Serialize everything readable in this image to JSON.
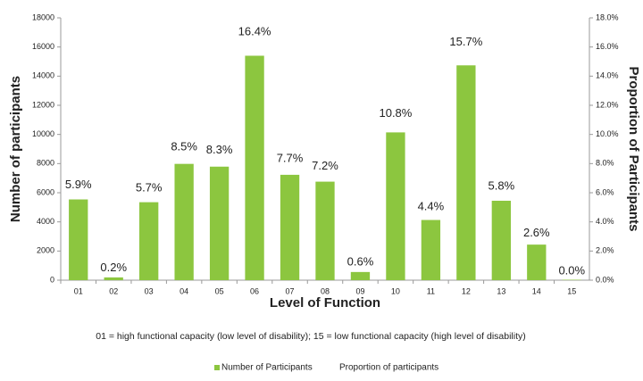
{
  "chart_data": {
    "type": "bar",
    "xlabel": "Level of Function",
    "ylabel": "Number of participants",
    "y2label": "Proportion of Participants",
    "note": "01 = high functional capacity (low level of disability); 15 = low functional capacity (high level of disability)",
    "categories": [
      "01",
      "02",
      "03",
      "04",
      "05",
      "06",
      "07",
      "08",
      "09",
      "10",
      "11",
      "12",
      "13",
      "14",
      "15"
    ],
    "series": [
      {
        "name": "Number of Participants",
        "color": "#8cc63f",
        "values": [
          5540,
          190,
          5350,
          7980,
          7790,
          15400,
          7230,
          6760,
          560,
          10140,
          4130,
          14740,
          5450,
          2440,
          30
        ]
      },
      {
        "name": "Proportion of participants",
        "color": "none",
        "axis": "y2",
        "values": [
          5.9,
          0.2,
          5.7,
          8.5,
          8.3,
          16.4,
          7.7,
          7.2,
          0.6,
          10.8,
          4.4,
          15.7,
          5.8,
          2.6,
          0.0
        ],
        "value_labels": [
          "5.9%",
          "0.2%",
          "5.7%",
          "8.5%",
          "8.3%",
          "16.4%",
          "7.7%",
          "7.2%",
          "0.6%",
          "10.8%",
          "4.4%",
          "15.7%",
          "5.8%",
          "2.6%",
          "0.0%"
        ]
      }
    ],
    "ylim": [
      0,
      18000
    ],
    "yticks": [
      0,
      2000,
      4000,
      6000,
      8000,
      10000,
      12000,
      14000,
      16000,
      18000
    ],
    "y2lim": [
      0,
      18
    ],
    "y2ticks": [
      {
        "value": 0,
        "label": "0.0%"
      },
      {
        "value": 2,
        "label": "2.0%"
      },
      {
        "value": 4,
        "label": "4.0%"
      },
      {
        "value": 6,
        "label": "6.0%"
      },
      {
        "value": 8,
        "label": "8.0%"
      },
      {
        "value": 10,
        "label": "10.0%"
      },
      {
        "value": 12,
        "label": "12.0%"
      },
      {
        "value": 14,
        "label": "14.0%"
      },
      {
        "value": 16,
        "label": "16.0%"
      },
      {
        "value": 18,
        "label": "18.0%"
      }
    ],
    "grid": false,
    "legend": "bottom"
  }
}
